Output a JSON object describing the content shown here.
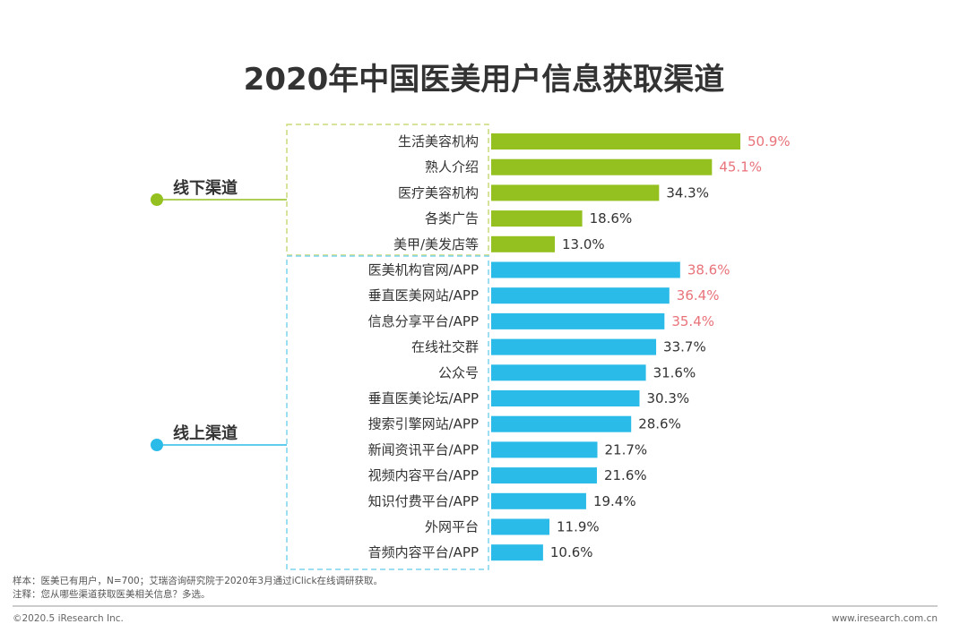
{
  "chart_data": {
    "type": "bar",
    "orientation": "horizontal",
    "title": "2020年中国医美用户信息获取渠道",
    "unit": "%",
    "xlim": [
      0,
      55
    ],
    "groups": [
      {
        "name": "线下渠道",
        "color": "#94c11f",
        "categories": [
          "生活美容机构",
          "熟人介绍",
          "医疗美容机构",
          "各类广告",
          "美甲/美发店等"
        ],
        "values": [
          50.9,
          45.1,
          34.3,
          18.6,
          13.0
        ],
        "value_labels": [
          "50.9%",
          "45.1%",
          "34.3%",
          "18.6%",
          "13.0%"
        ],
        "highlight": [
          true,
          true,
          false,
          false,
          false
        ]
      },
      {
        "name": "线上渠道",
        "color": "#2bbbe8",
        "categories": [
          "医美机构官网/APP",
          "垂直医美网站/APP",
          "信息分享平台/APP",
          "在线社交群",
          "公众号",
          "垂直医美论坛/APP",
          "搜索引擎网站/APP",
          "新闻资讯平台/APP",
          "视频内容平台/APP",
          "知识付费平台/APP",
          "外网平台",
          "音频内容平台/APP"
        ],
        "values": [
          38.6,
          36.4,
          35.4,
          33.7,
          31.6,
          30.3,
          28.6,
          21.7,
          21.6,
          19.4,
          11.9,
          10.6
        ],
        "value_labels": [
          "38.6%",
          "36.4%",
          "35.4%",
          "33.7%",
          "31.6%",
          "30.3%",
          "28.6%",
          "21.7%",
          "21.6%",
          "19.4%",
          "11.9%",
          "10.6%"
        ],
        "highlight": [
          true,
          true,
          true,
          false,
          false,
          false,
          false,
          false,
          false,
          false,
          false,
          false
        ]
      }
    ],
    "highlight_color": "#e8737a",
    "normal_label_color": "#333333"
  },
  "notes": {
    "sample": "样本：医美已有用户，N=700；艾瑞咨询研究院于2020年3月通过iClick在线调研获取。",
    "remark": "注释：您从哪些渠道获取医美相关信息？多选。"
  },
  "footer": {
    "copyright": "©2020.5 iResearch Inc.",
    "website": "www.iresearch.com.cn"
  }
}
